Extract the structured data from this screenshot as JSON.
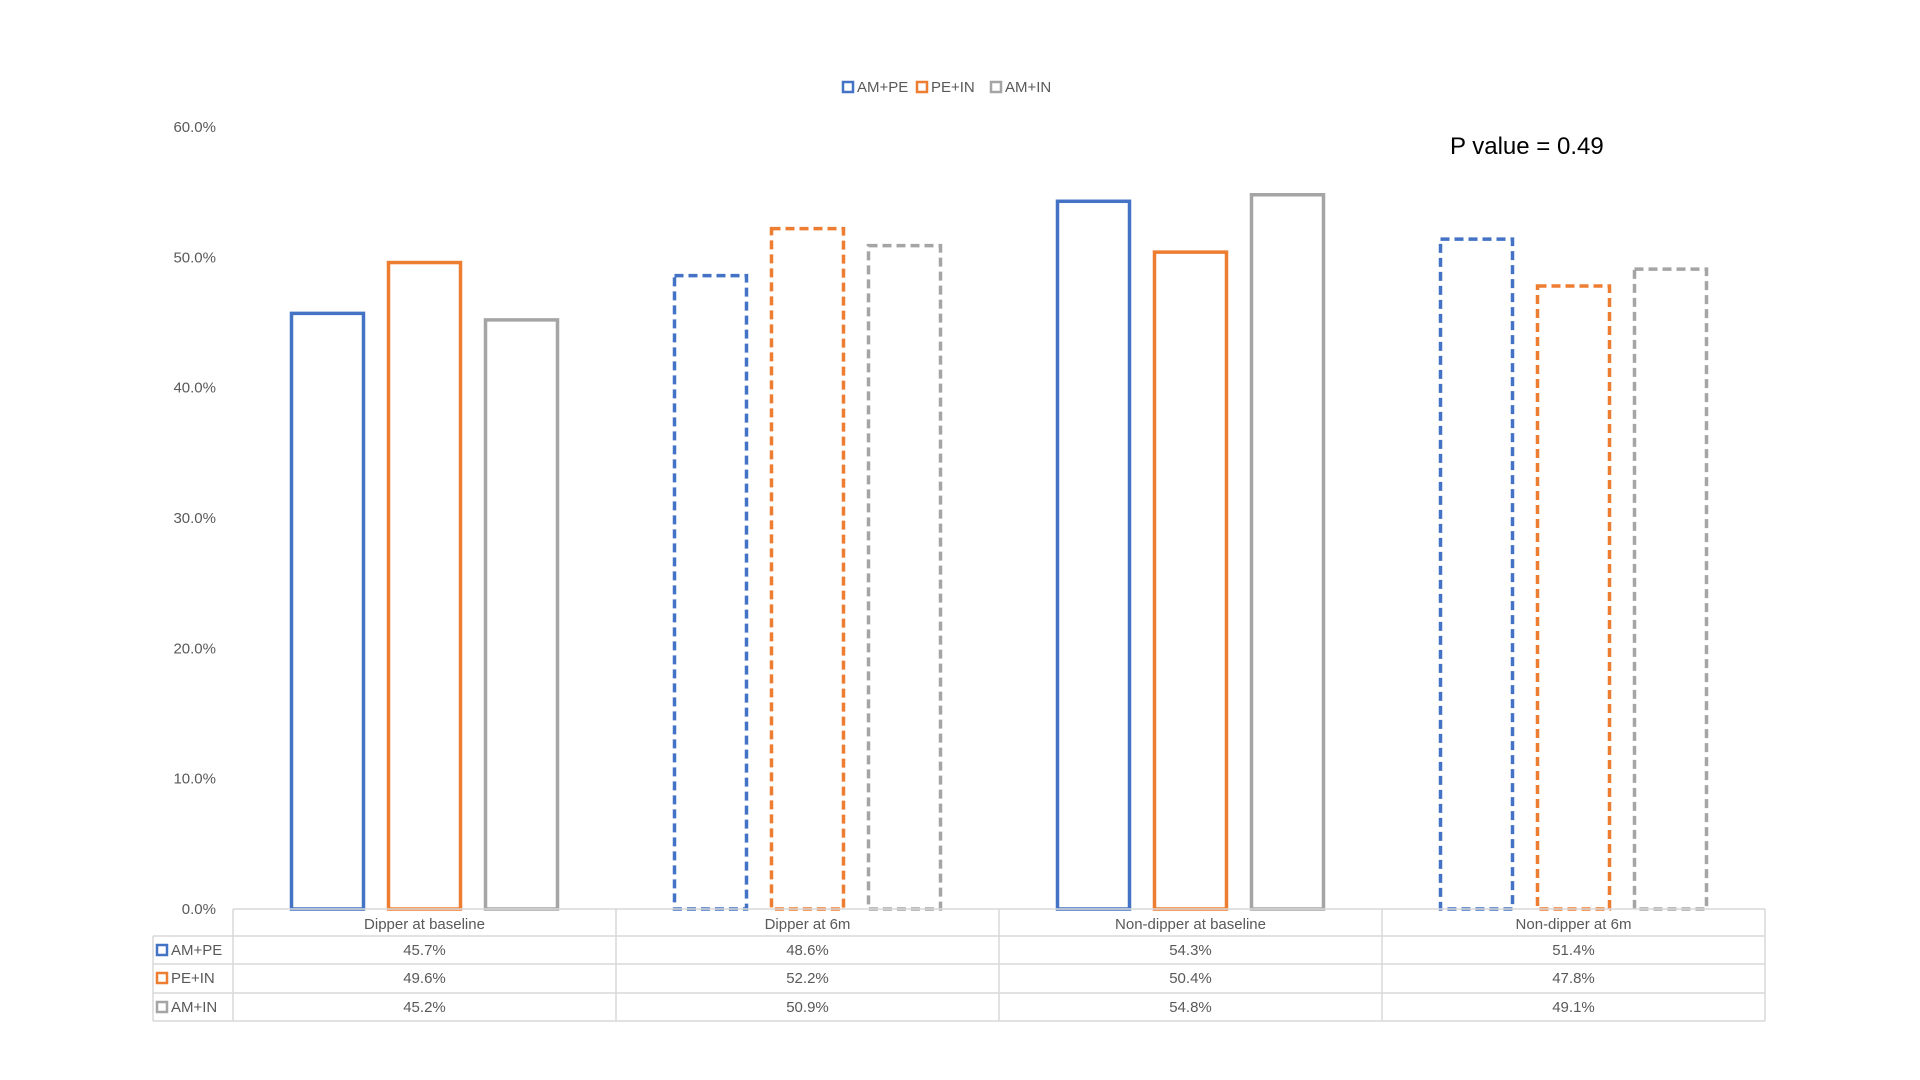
{
  "chart_data": {
    "type": "bar",
    "categories": [
      "Dipper at baseline",
      "Dipper at 6m",
      "Non-dipper at baseline",
      "Non-dipper at 6m"
    ],
    "dashed_categories": [
      "Dipper at 6m",
      "Non-dipper at 6m"
    ],
    "series": [
      {
        "name": "AM+PE",
        "color": "#4472C4",
        "values": [
          45.7,
          48.6,
          54.3,
          51.4
        ],
        "labels": [
          "45.7%",
          "48.6%",
          "54.3%",
          "51.4%"
        ]
      },
      {
        "name": "PE+IN",
        "color": "#ED7D31",
        "values": [
          49.6,
          52.2,
          50.4,
          47.8
        ],
        "labels": [
          "49.6%",
          "52.2%",
          "50.4%",
          "47.8%"
        ]
      },
      {
        "name": "AM+IN",
        "color": "#A5A5A5",
        "values": [
          45.2,
          50.9,
          54.8,
          49.1
        ],
        "labels": [
          "45.2%",
          "50.9%",
          "54.8%",
          "49.1%"
        ]
      }
    ],
    "y_ticks": [
      "0.0%",
      "10.0%",
      "20.0%",
      "30.0%",
      "40.0%",
      "50.0%",
      "60.0%"
    ],
    "ylim": [
      0,
      60
    ],
    "annotation": "P value = 0.49",
    "legend_position": "top-center",
    "data_table": true,
    "grid": false
  }
}
